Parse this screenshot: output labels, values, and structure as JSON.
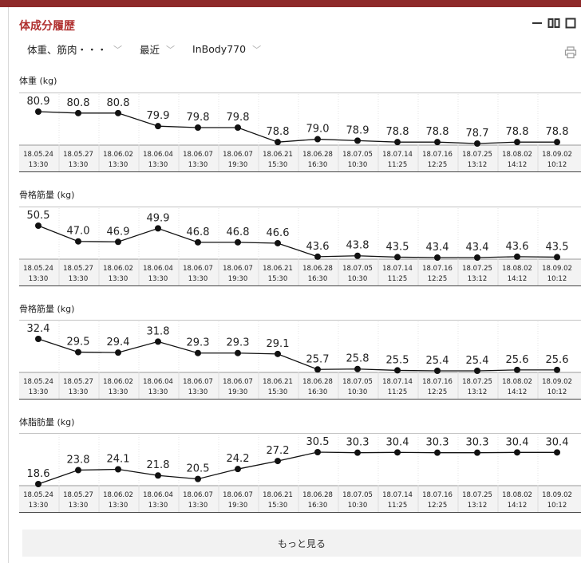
{
  "title": "体成分履歴",
  "filters": [
    {
      "label": "体重、筋肉・・・"
    },
    {
      "label": "最近"
    },
    {
      "label": "InBody770"
    }
  ],
  "icons": {
    "minimize": "minimize-icon",
    "columns": "columns-icon",
    "maximize": "maximize-icon",
    "print": "print-icon",
    "chevron": "chevron-down-icon"
  },
  "colors": {
    "accent": "#b0302f",
    "topbar": "#8e2a2a",
    "line": "#111111"
  },
  "dates": [
    [
      "18.05.24",
      "13:30"
    ],
    [
      "18.05.27",
      "13:30"
    ],
    [
      "18.06.02",
      "13:30"
    ],
    [
      "18.06.04",
      "13:30"
    ],
    [
      "18.06.07",
      "13:30"
    ],
    [
      "18.06.07",
      "19:30"
    ],
    [
      "18.06.21",
      "15:30"
    ],
    [
      "18.06.28",
      "16:30"
    ],
    [
      "18.07.05",
      "10:30"
    ],
    [
      "18.07.14",
      "11:25"
    ],
    [
      "18.07.16",
      "12:25"
    ],
    [
      "18.07.25",
      "13:12"
    ],
    [
      "18.08.02",
      "14:12"
    ],
    [
      "18.09.02",
      "10:12"
    ]
  ],
  "chart_data": [
    {
      "type": "line",
      "title": "体重 (kg)",
      "values": [
        "80.9",
        "80.8",
        "80.8",
        "79.9",
        "79.8",
        "79.8",
        "78.8",
        "79.0",
        "78.9",
        "78.8",
        "78.8",
        "78.7",
        "78.8",
        "78.8"
      ]
    },
    {
      "type": "line",
      "title": "骨格筋量 (kg)",
      "values": [
        "50.5",
        "47.0",
        "46.9",
        "49.9",
        "46.8",
        "46.8",
        "46.6",
        "43.6",
        "43.8",
        "43.5",
        "43.4",
        "43.4",
        "43.6",
        "43.5"
      ]
    },
    {
      "type": "line",
      "title": "骨格筋量 (kg)",
      "values": [
        "32.4",
        "29.5",
        "29.4",
        "31.8",
        "29.3",
        "29.3",
        "29.1",
        "25.7",
        "25.8",
        "25.5",
        "25.4",
        "25.4",
        "25.6",
        "25.6"
      ]
    },
    {
      "type": "line",
      "title": "体脂肪量 (kg)",
      "values": [
        "18.6",
        "23.8",
        "24.1",
        "21.8",
        "20.5",
        "24.2",
        "27.2",
        "30.5",
        "30.3",
        "30.4",
        "30.3",
        "30.3",
        "30.4",
        "30.4"
      ]
    }
  ],
  "more_button": "もっと見る"
}
